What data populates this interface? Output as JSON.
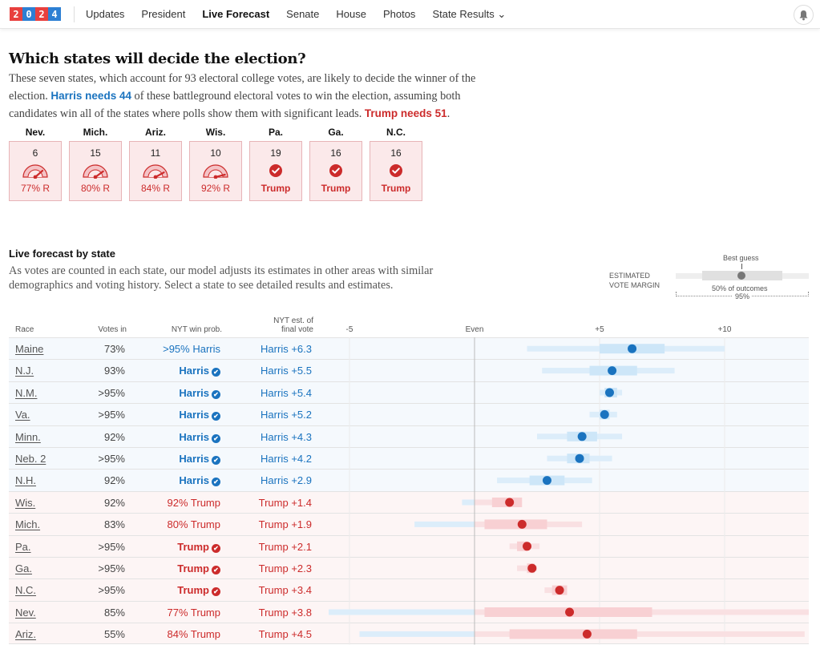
{
  "nav": {
    "logo_digits": [
      "2",
      "0",
      "2",
      "4"
    ],
    "logo_colors": [
      "#e8403e",
      "#2d7fd3",
      "#e8403e",
      "#2d7fd3"
    ],
    "items": [
      {
        "label": "Updates",
        "active": false
      },
      {
        "label": "President",
        "active": false
      },
      {
        "label": "Live Forecast",
        "active": true
      },
      {
        "label": "Senate",
        "active": false
      },
      {
        "label": "House",
        "active": false
      },
      {
        "label": "Photos",
        "active": false
      },
      {
        "label": "State Results ⌄",
        "active": false
      }
    ],
    "bell_icon": "bell-icon"
  },
  "battleground": {
    "title": "Which states will decide the election?",
    "intro_1": "These seven states, which account for 93 electoral college votes, are likely to decide the winner of the election. ",
    "harris_needs": "Harris needs 44",
    "intro_2": " of these battleground electoral votes to win the election, assuming both candidates win all of the states where polls show them with significant leads. ",
    "trump_needs": "Trump needs 51",
    "intro_3": ".",
    "states": [
      {
        "name": "Nev.",
        "ev": "6",
        "type": "gauge",
        "prob": 0.77,
        "label": "77% R"
      },
      {
        "name": "Mich.",
        "ev": "15",
        "type": "gauge",
        "prob": 0.8,
        "label": "80% R"
      },
      {
        "name": "Ariz.",
        "ev": "11",
        "type": "gauge",
        "prob": 0.84,
        "label": "84% R"
      },
      {
        "name": "Wis.",
        "ev": "10",
        "type": "gauge",
        "prob": 0.92,
        "label": "92% R"
      },
      {
        "name": "Pa.",
        "ev": "19",
        "type": "check",
        "label": "Trump"
      },
      {
        "name": "Ga.",
        "ev": "16",
        "type": "check",
        "label": "Trump"
      },
      {
        "name": "N.C.",
        "ev": "16",
        "type": "check",
        "label": "Trump"
      }
    ]
  },
  "forecast": {
    "title": "Live forecast by state",
    "subtitle": "As votes are counted in each state, our model adjusts its estimates in other areas with similar demographics and voting history. Select a state to see detailed results and estimates.",
    "legend": {
      "label_line1": "ESTIMATED",
      "label_line2": "VOTE MARGIN",
      "best_guess": "Best guess",
      "fifty": "50% of outcomes",
      "ninety_five": "95%"
    },
    "columns": {
      "race": "Race",
      "votes": "Votes in",
      "prob": "NYT win prob.",
      "est_line1": "NYT est. of",
      "est_line2": "final vote"
    },
    "colors": {
      "dem": "#1a73bf",
      "rep": "#cc2b2b",
      "dem_light": "#dcedfa",
      "dem_mid": "#cde6f8",
      "rep_light": "#f9e0e2",
      "rep_mid": "#f8d0d3"
    }
  },
  "chart_data": {
    "type": "interval",
    "title": "Live forecast by state",
    "xlabel": "Estimated vote margin (leader)",
    "x_ticks": [
      {
        "value": -5,
        "label": "-5"
      },
      {
        "value": 0,
        "label": "Even"
      },
      {
        "value": 5,
        "label": "+5"
      },
      {
        "value": 10,
        "label": "+10"
      }
    ],
    "xlim": [
      -5.9,
      13.4
    ],
    "grid": true,
    "rows": [
      {
        "race": "Maine",
        "votes_in": "73%",
        "win_prob": ">95% Harris",
        "called": false,
        "estimate": "Harris +6.3",
        "party": "dem",
        "best": 6.3,
        "p50": [
          5.0,
          7.6
        ],
        "p95": [
          2.1,
          10.0
        ]
      },
      {
        "race": "N.J.",
        "votes_in": "93%",
        "win_prob": "Harris",
        "called": true,
        "estimate": "Harris +5.5",
        "party": "dem",
        "best": 5.5,
        "p50": [
          4.6,
          6.5
        ],
        "p95": [
          2.7,
          8.0
        ]
      },
      {
        "race": "N.M.",
        "votes_in": ">95%",
        "win_prob": "Harris",
        "called": true,
        "estimate": "Harris +5.4",
        "party": "dem",
        "best": 5.4,
        "p50": [
          5.2,
          5.7
        ],
        "p95": [
          5.0,
          5.9
        ]
      },
      {
        "race": "Va.",
        "votes_in": ">95%",
        "win_prob": "Harris",
        "called": true,
        "estimate": "Harris +5.2",
        "party": "dem",
        "best": 5.2,
        "p50": [
          5.0,
          5.4
        ],
        "p95": [
          4.6,
          5.7
        ]
      },
      {
        "race": "Minn.",
        "votes_in": "92%",
        "win_prob": "Harris",
        "called": true,
        "estimate": "Harris +4.3",
        "party": "dem",
        "best": 4.3,
        "p50": [
          3.7,
          4.9
        ],
        "p95": [
          2.5,
          5.9
        ]
      },
      {
        "race": "Neb. 2",
        "votes_in": ">95%",
        "win_prob": "Harris",
        "called": true,
        "estimate": "Harris +4.2",
        "party": "dem",
        "best": 4.2,
        "p50": [
          3.7,
          4.6
        ],
        "p95": [
          2.9,
          5.5
        ]
      },
      {
        "race": "N.H.",
        "votes_in": "92%",
        "win_prob": "Harris",
        "called": true,
        "estimate": "Harris +2.9",
        "party": "dem",
        "best": 2.9,
        "p50": [
          2.2,
          3.6
        ],
        "p95": [
          0.9,
          4.7
        ]
      },
      {
        "race": "Wis.",
        "votes_in": "92%",
        "win_prob": "92% Trump",
        "called": false,
        "estimate": "Trump +1.4",
        "party": "rep",
        "best": 1.4,
        "p50": [
          0.7,
          1.9
        ],
        "p95": [
          -0.5,
          1.8
        ]
      },
      {
        "race": "Mich.",
        "votes_in": "83%",
        "win_prob": "80% Trump",
        "called": false,
        "estimate": "Trump +1.9",
        "party": "rep",
        "best": 1.9,
        "p50": [
          0.4,
          2.9
        ],
        "p95": [
          -2.4,
          4.3
        ]
      },
      {
        "race": "Pa.",
        "votes_in": ">95%",
        "win_prob": "Trump",
        "called": true,
        "estimate": "Trump +2.1",
        "party": "rep",
        "best": 2.1,
        "p50": [
          1.7,
          2.1
        ],
        "p95": [
          1.4,
          2.6
        ]
      },
      {
        "race": "Ga.",
        "votes_in": ">95%",
        "win_prob": "Trump",
        "called": true,
        "estimate": "Trump +2.3",
        "party": "rep",
        "best": 2.3,
        "p50": [
          2.1,
          2.4
        ],
        "p95": [
          1.7,
          2.5
        ]
      },
      {
        "race": "N.C.",
        "votes_in": ">95%",
        "win_prob": "Trump",
        "called": true,
        "estimate": "Trump +3.4",
        "party": "rep",
        "best": 3.4,
        "p50": [
          3.1,
          3.7
        ],
        "p95": [
          2.8,
          3.6
        ]
      },
      {
        "race": "Nev.",
        "votes_in": "85%",
        "win_prob": "77% Trump",
        "called": false,
        "estimate": "Trump +3.8",
        "party": "rep",
        "best": 3.8,
        "p50": [
          0.4,
          7.1
        ],
        "p95": [
          -5.9,
          13.4
        ]
      },
      {
        "race": "Ariz.",
        "votes_in": "55%",
        "win_prob": "84% Trump",
        "called": false,
        "estimate": "Trump +4.5",
        "party": "rep",
        "best": 4.5,
        "p50": [
          1.4,
          6.5
        ],
        "p95": [
          -4.6,
          13.2
        ]
      }
    ]
  }
}
